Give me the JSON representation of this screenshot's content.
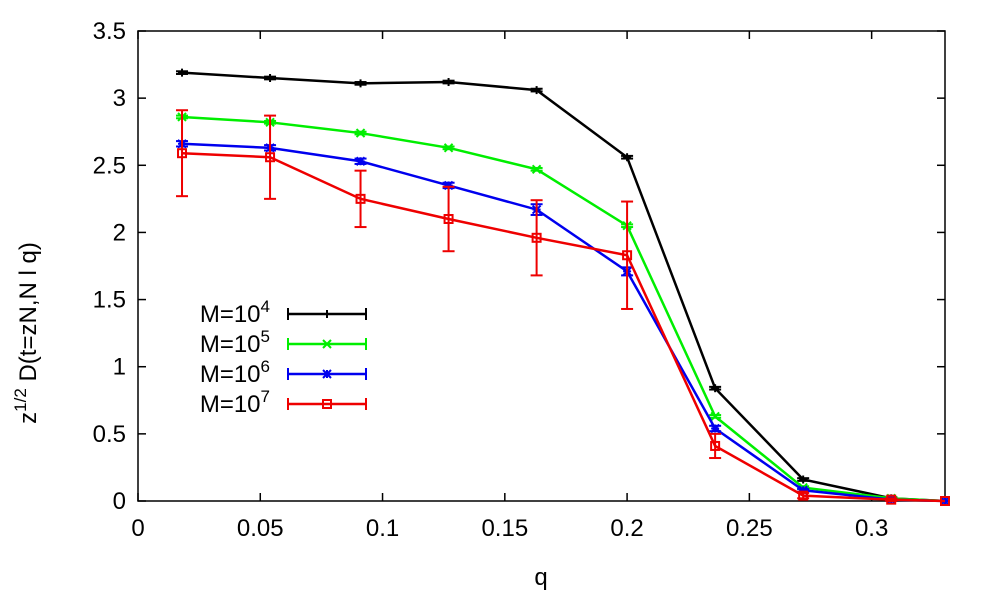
{
  "chart_data": {
    "type": "line",
    "xlabel": "q",
    "ylabel": "z^{1/2} D(t=zN,N l q)",
    "xlim": [
      0,
      0.33
    ],
    "ylim": [
      0,
      3.5
    ],
    "xticks": [
      "0",
      "0.05",
      "0.1",
      "0.15",
      "0.2",
      "0.25",
      "0.3"
    ],
    "xtick_values": [
      0,
      0.05,
      0.1,
      0.15,
      0.2,
      0.25,
      0.3
    ],
    "yticks": [
      "0",
      "0.5",
      "1",
      "1.5",
      "2",
      "2.5",
      "3",
      "3.5"
    ],
    "ytick_values": [
      0,
      0.5,
      1,
      1.5,
      2,
      2.5,
      3,
      3.5
    ],
    "grid": false,
    "legend_position": "center-left",
    "x": [
      0.018,
      0.054,
      0.091,
      0.127,
      0.163,
      0.2,
      0.236,
      0.272,
      0.308,
      0.33
    ],
    "series": [
      {
        "name": "M=10^4",
        "color": "#000000",
        "marker": "plus",
        "values": [
          3.19,
          3.15,
          3.11,
          3.12,
          3.06,
          2.56,
          0.84,
          0.16,
          0.02,
          0.0
        ],
        "errors": [
          0.01,
          0.01,
          0.01,
          0.01,
          0.01,
          0.01,
          0.01,
          0.01,
          0.01,
          0.0
        ]
      },
      {
        "name": "M=10^5",
        "color": "#00ee00",
        "marker": "x",
        "values": [
          2.86,
          2.82,
          2.74,
          2.63,
          2.47,
          2.05,
          0.63,
          0.1,
          0.02,
          0.0
        ],
        "errors": [
          0.01,
          0.01,
          0.01,
          0.01,
          0.01,
          0.01,
          0.01,
          0.01,
          0.01,
          0.0
        ]
      },
      {
        "name": "M=10^6",
        "color": "#0000ee",
        "marker": "star",
        "values": [
          2.66,
          2.63,
          2.53,
          2.35,
          2.17,
          1.71,
          0.54,
          0.08,
          0.01,
          0.0
        ],
        "errors": [
          0.02,
          0.02,
          0.02,
          0.02,
          0.04,
          0.03,
          0.02,
          0.01,
          0.01,
          0.0
        ]
      },
      {
        "name": "M=10^7",
        "color": "#ee0000",
        "marker": "square",
        "values": [
          2.59,
          2.56,
          2.25,
          2.1,
          1.96,
          1.83,
          0.41,
          0.04,
          0.01,
          0.0
        ],
        "errors": [
          0.32,
          0.31,
          0.21,
          0.24,
          0.28,
          0.4,
          0.09,
          0.02,
          0.01,
          0.0
        ]
      }
    ],
    "legend": [
      {
        "base": "M=10",
        "exp": "4"
      },
      {
        "base": "M=10",
        "exp": "5"
      },
      {
        "base": "M=10",
        "exp": "6"
      },
      {
        "base": "M=10",
        "exp": "7"
      }
    ],
    "ylabel_parts": {
      "base": "z",
      "exp": "1/2",
      "rest": " D(t=zN,N l q)"
    }
  }
}
